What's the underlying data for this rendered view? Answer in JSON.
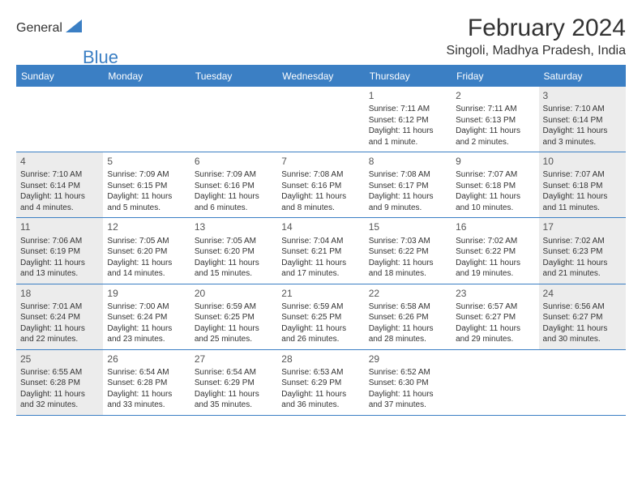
{
  "brand": {
    "text1": "General",
    "text2": "Blue",
    "triangle_color": "#3b7fc4"
  },
  "title": "February 2024",
  "location": "Singoli, Madhya Pradesh, India",
  "colors": {
    "accent": "#3b7fc4",
    "shaded_bg": "#ececec",
    "text": "#333333",
    "weekday_fg": "#ffffff",
    "page_bg": "#ffffff"
  },
  "weekdays": [
    "Sunday",
    "Monday",
    "Tuesday",
    "Wednesday",
    "Thursday",
    "Friday",
    "Saturday"
  ],
  "weeks": [
    [
      {
        "num": "",
        "sunrise": "",
        "sunset": "",
        "daylight": "",
        "shaded": false
      },
      {
        "num": "",
        "sunrise": "",
        "sunset": "",
        "daylight": "",
        "shaded": false
      },
      {
        "num": "",
        "sunrise": "",
        "sunset": "",
        "daylight": "",
        "shaded": false
      },
      {
        "num": "",
        "sunrise": "",
        "sunset": "",
        "daylight": "",
        "shaded": false
      },
      {
        "num": "1",
        "sunrise": "Sunrise: 7:11 AM",
        "sunset": "Sunset: 6:12 PM",
        "daylight": "Daylight: 11 hours and 1 minute.",
        "shaded": false
      },
      {
        "num": "2",
        "sunrise": "Sunrise: 7:11 AM",
        "sunset": "Sunset: 6:13 PM",
        "daylight": "Daylight: 11 hours and 2 minutes.",
        "shaded": false
      },
      {
        "num": "3",
        "sunrise": "Sunrise: 7:10 AM",
        "sunset": "Sunset: 6:14 PM",
        "daylight": "Daylight: 11 hours and 3 minutes.",
        "shaded": true
      }
    ],
    [
      {
        "num": "4",
        "sunrise": "Sunrise: 7:10 AM",
        "sunset": "Sunset: 6:14 PM",
        "daylight": "Daylight: 11 hours and 4 minutes.",
        "shaded": true
      },
      {
        "num": "5",
        "sunrise": "Sunrise: 7:09 AM",
        "sunset": "Sunset: 6:15 PM",
        "daylight": "Daylight: 11 hours and 5 minutes.",
        "shaded": false
      },
      {
        "num": "6",
        "sunrise": "Sunrise: 7:09 AM",
        "sunset": "Sunset: 6:16 PM",
        "daylight": "Daylight: 11 hours and 6 minutes.",
        "shaded": false
      },
      {
        "num": "7",
        "sunrise": "Sunrise: 7:08 AM",
        "sunset": "Sunset: 6:16 PM",
        "daylight": "Daylight: 11 hours and 8 minutes.",
        "shaded": false
      },
      {
        "num": "8",
        "sunrise": "Sunrise: 7:08 AM",
        "sunset": "Sunset: 6:17 PM",
        "daylight": "Daylight: 11 hours and 9 minutes.",
        "shaded": false
      },
      {
        "num": "9",
        "sunrise": "Sunrise: 7:07 AM",
        "sunset": "Sunset: 6:18 PM",
        "daylight": "Daylight: 11 hours and 10 minutes.",
        "shaded": false
      },
      {
        "num": "10",
        "sunrise": "Sunrise: 7:07 AM",
        "sunset": "Sunset: 6:18 PM",
        "daylight": "Daylight: 11 hours and 11 minutes.",
        "shaded": true
      }
    ],
    [
      {
        "num": "11",
        "sunrise": "Sunrise: 7:06 AM",
        "sunset": "Sunset: 6:19 PM",
        "daylight": "Daylight: 11 hours and 13 minutes.",
        "shaded": true
      },
      {
        "num": "12",
        "sunrise": "Sunrise: 7:05 AM",
        "sunset": "Sunset: 6:20 PM",
        "daylight": "Daylight: 11 hours and 14 minutes.",
        "shaded": false
      },
      {
        "num": "13",
        "sunrise": "Sunrise: 7:05 AM",
        "sunset": "Sunset: 6:20 PM",
        "daylight": "Daylight: 11 hours and 15 minutes.",
        "shaded": false
      },
      {
        "num": "14",
        "sunrise": "Sunrise: 7:04 AM",
        "sunset": "Sunset: 6:21 PM",
        "daylight": "Daylight: 11 hours and 17 minutes.",
        "shaded": false
      },
      {
        "num": "15",
        "sunrise": "Sunrise: 7:03 AM",
        "sunset": "Sunset: 6:22 PM",
        "daylight": "Daylight: 11 hours and 18 minutes.",
        "shaded": false
      },
      {
        "num": "16",
        "sunrise": "Sunrise: 7:02 AM",
        "sunset": "Sunset: 6:22 PM",
        "daylight": "Daylight: 11 hours and 19 minutes.",
        "shaded": false
      },
      {
        "num": "17",
        "sunrise": "Sunrise: 7:02 AM",
        "sunset": "Sunset: 6:23 PM",
        "daylight": "Daylight: 11 hours and 21 minutes.",
        "shaded": true
      }
    ],
    [
      {
        "num": "18",
        "sunrise": "Sunrise: 7:01 AM",
        "sunset": "Sunset: 6:24 PM",
        "daylight": "Daylight: 11 hours and 22 minutes.",
        "shaded": true
      },
      {
        "num": "19",
        "sunrise": "Sunrise: 7:00 AM",
        "sunset": "Sunset: 6:24 PM",
        "daylight": "Daylight: 11 hours and 23 minutes.",
        "shaded": false
      },
      {
        "num": "20",
        "sunrise": "Sunrise: 6:59 AM",
        "sunset": "Sunset: 6:25 PM",
        "daylight": "Daylight: 11 hours and 25 minutes.",
        "shaded": false
      },
      {
        "num": "21",
        "sunrise": "Sunrise: 6:59 AM",
        "sunset": "Sunset: 6:25 PM",
        "daylight": "Daylight: 11 hours and 26 minutes.",
        "shaded": false
      },
      {
        "num": "22",
        "sunrise": "Sunrise: 6:58 AM",
        "sunset": "Sunset: 6:26 PM",
        "daylight": "Daylight: 11 hours and 28 minutes.",
        "shaded": false
      },
      {
        "num": "23",
        "sunrise": "Sunrise: 6:57 AM",
        "sunset": "Sunset: 6:27 PM",
        "daylight": "Daylight: 11 hours and 29 minutes.",
        "shaded": false
      },
      {
        "num": "24",
        "sunrise": "Sunrise: 6:56 AM",
        "sunset": "Sunset: 6:27 PM",
        "daylight": "Daylight: 11 hours and 30 minutes.",
        "shaded": true
      }
    ],
    [
      {
        "num": "25",
        "sunrise": "Sunrise: 6:55 AM",
        "sunset": "Sunset: 6:28 PM",
        "daylight": "Daylight: 11 hours and 32 minutes.",
        "shaded": true
      },
      {
        "num": "26",
        "sunrise": "Sunrise: 6:54 AM",
        "sunset": "Sunset: 6:28 PM",
        "daylight": "Daylight: 11 hours and 33 minutes.",
        "shaded": false
      },
      {
        "num": "27",
        "sunrise": "Sunrise: 6:54 AM",
        "sunset": "Sunset: 6:29 PM",
        "daylight": "Daylight: 11 hours and 35 minutes.",
        "shaded": false
      },
      {
        "num": "28",
        "sunrise": "Sunrise: 6:53 AM",
        "sunset": "Sunset: 6:29 PM",
        "daylight": "Daylight: 11 hours and 36 minutes.",
        "shaded": false
      },
      {
        "num": "29",
        "sunrise": "Sunrise: 6:52 AM",
        "sunset": "Sunset: 6:30 PM",
        "daylight": "Daylight: 11 hours and 37 minutes.",
        "shaded": false
      },
      {
        "num": "",
        "sunrise": "",
        "sunset": "",
        "daylight": "",
        "shaded": false
      },
      {
        "num": "",
        "sunrise": "",
        "sunset": "",
        "daylight": "",
        "shaded": false
      }
    ]
  ]
}
